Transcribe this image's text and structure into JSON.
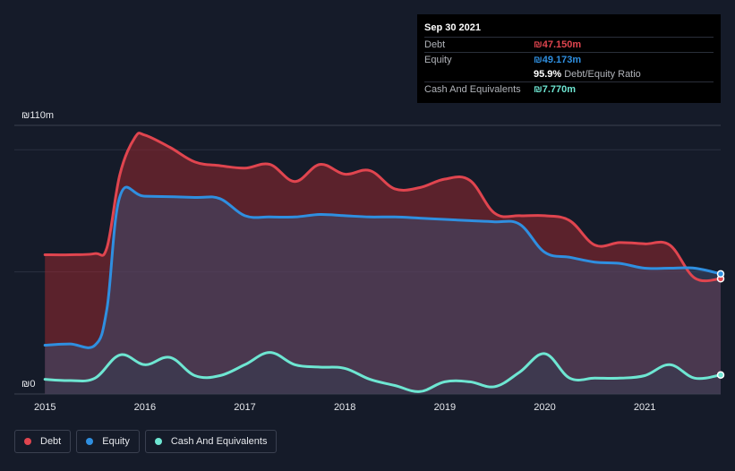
{
  "tooltip": {
    "date": "Sep 30 2021",
    "debt_label": "Debt",
    "debt_value": "₪47.150m",
    "equity_label": "Equity",
    "equity_value": "₪49.173m",
    "ratio_value": "95.9%",
    "ratio_label": "Debt/Equity Ratio",
    "cash_label": "Cash And Equivalents",
    "cash_value": "₪7.770m"
  },
  "colors": {
    "debt": "#e0454f",
    "equity": "#2f8fe0",
    "cash": "#6ee6d2",
    "background": "#151b29"
  },
  "legend": [
    {
      "name": "Debt",
      "color": "#e0454f"
    },
    {
      "name": "Equity",
      "color": "#2f8fe0"
    },
    {
      "name": "Cash And Equivalents",
      "color": "#6ee6d2"
    }
  ],
  "chart_data": {
    "type": "area",
    "title": "",
    "xlabel": "",
    "ylabel": "",
    "y_tick_labels": [
      "₪110m",
      "₪0"
    ],
    "ylim": [
      0,
      110
    ],
    "xlim": [
      2014.98,
      2021.76
    ],
    "x_tick_labels": [
      "2015",
      "2016",
      "2017",
      "2018",
      "2019",
      "2020",
      "2021"
    ],
    "x_tick_values": [
      2015,
      2016,
      2017,
      2018,
      2019,
      2020,
      2021
    ],
    "series": [
      {
        "name": "Debt",
        "points": [
          [
            2015.0,
            57
          ],
          [
            2015.25,
            57
          ],
          [
            2015.5,
            57.5
          ],
          [
            2015.62,
            60
          ],
          [
            2015.75,
            90
          ],
          [
            2015.9,
            105
          ],
          [
            2016.0,
            106
          ],
          [
            2016.25,
            101
          ],
          [
            2016.5,
            95
          ],
          [
            2016.75,
            93.5
          ],
          [
            2017.0,
            92.5
          ],
          [
            2017.25,
            94
          ],
          [
            2017.5,
            87
          ],
          [
            2017.75,
            94
          ],
          [
            2018.0,
            90
          ],
          [
            2018.25,
            91.5
          ],
          [
            2018.5,
            84
          ],
          [
            2018.75,
            84.5
          ],
          [
            2019.0,
            88
          ],
          [
            2019.25,
            87.5
          ],
          [
            2019.5,
            74
          ],
          [
            2019.75,
            73
          ],
          [
            2020.0,
            73
          ],
          [
            2020.25,
            71
          ],
          [
            2020.5,
            61
          ],
          [
            2020.75,
            62
          ],
          [
            2021.0,
            61.5
          ],
          [
            2021.25,
            61
          ],
          [
            2021.5,
            47.5
          ],
          [
            2021.76,
            47.2
          ]
        ]
      },
      {
        "name": "Equity",
        "points": [
          [
            2015.0,
            20
          ],
          [
            2015.25,
            20.5
          ],
          [
            2015.5,
            20
          ],
          [
            2015.62,
            35
          ],
          [
            2015.75,
            81
          ],
          [
            2016.0,
            81
          ],
          [
            2016.5,
            80.5
          ],
          [
            2016.75,
            80
          ],
          [
            2017.0,
            73
          ],
          [
            2017.25,
            72.5
          ],
          [
            2017.5,
            72.5
          ],
          [
            2017.75,
            73.5
          ],
          [
            2018.0,
            73
          ],
          [
            2018.25,
            72.5
          ],
          [
            2018.5,
            72.5
          ],
          [
            2018.75,
            72
          ],
          [
            2019.0,
            71.5
          ],
          [
            2019.25,
            71
          ],
          [
            2019.5,
            70.5
          ],
          [
            2019.75,
            69.5
          ],
          [
            2020.0,
            58
          ],
          [
            2020.25,
            56
          ],
          [
            2020.5,
            54
          ],
          [
            2020.75,
            53.5
          ],
          [
            2021.0,
            51.5
          ],
          [
            2021.25,
            51.5
          ],
          [
            2021.5,
            51.5
          ],
          [
            2021.76,
            49.2
          ]
        ]
      },
      {
        "name": "Cash And Equivalents",
        "points": [
          [
            2015.0,
            6
          ],
          [
            2015.25,
            5.5
          ],
          [
            2015.5,
            6.5
          ],
          [
            2015.75,
            16
          ],
          [
            2016.0,
            12
          ],
          [
            2016.25,
            15
          ],
          [
            2016.5,
            7.5
          ],
          [
            2016.75,
            7.5
          ],
          [
            2017.0,
            12
          ],
          [
            2017.25,
            17
          ],
          [
            2017.5,
            12
          ],
          [
            2017.75,
            11
          ],
          [
            2018.0,
            10.5
          ],
          [
            2018.25,
            6
          ],
          [
            2018.5,
            3.5
          ],
          [
            2018.75,
            1
          ],
          [
            2019.0,
            5
          ],
          [
            2019.25,
            5
          ],
          [
            2019.5,
            3
          ],
          [
            2019.75,
            9
          ],
          [
            2020.0,
            16.5
          ],
          [
            2020.25,
            6.5
          ],
          [
            2020.5,
            6.5
          ],
          [
            2020.75,
            6.5
          ],
          [
            2021.0,
            7.5
          ],
          [
            2021.25,
            12
          ],
          [
            2021.5,
            6.5
          ],
          [
            2021.76,
            7.8
          ]
        ]
      }
    ]
  }
}
